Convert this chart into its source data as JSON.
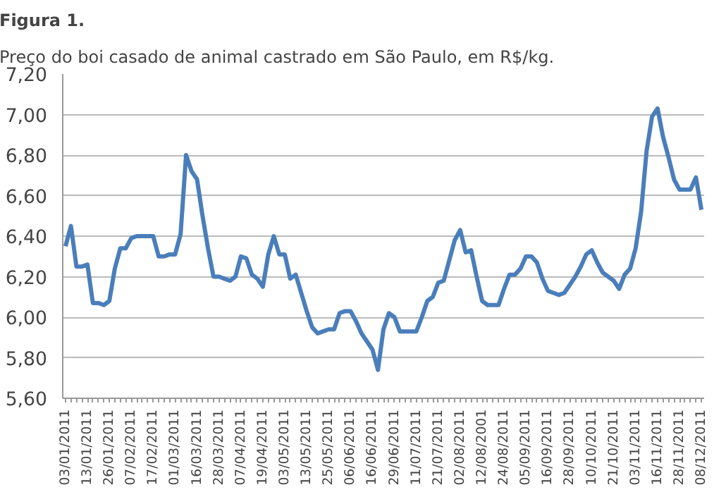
{
  "chart_data": {
    "type": "line",
    "title": "Figura 1.",
    "subtitle": "Preço do boi casado de animal castrado em São Paulo, em R$/kg.",
    "categories": [
      "03/01/2011",
      null,
      null,
      null,
      "13/01/2011",
      null,
      null,
      null,
      "26/01/2011",
      null,
      null,
      null,
      "07/02/2011",
      null,
      null,
      null,
      "17/02/2011",
      null,
      null,
      null,
      "01/03/2011",
      null,
      null,
      null,
      "16/03/2011",
      null,
      null,
      null,
      "28/03/2011",
      null,
      null,
      null,
      "07/04/2011",
      null,
      null,
      null,
      "19/04/2011",
      null,
      null,
      null,
      "03/05/2011",
      null,
      null,
      null,
      "13/05/2011",
      null,
      null,
      null,
      "25/05/2011",
      null,
      null,
      null,
      "06/06/2011",
      null,
      null,
      null,
      "16/06/2011",
      null,
      null,
      null,
      "29/06/2011",
      null,
      null,
      null,
      "11/07/2011",
      null,
      null,
      null,
      "21/07/2011",
      null,
      null,
      null,
      "02/08/2011",
      null,
      null,
      null,
      "12/08/2001",
      null,
      null,
      null,
      "24/08/2011",
      null,
      null,
      null,
      "05/09/2011",
      null,
      null,
      null,
      "16/09/2011",
      null,
      null,
      null,
      "28/09/2011",
      null,
      null,
      null,
      "10/10/2011",
      null,
      null,
      null,
      "21/10/2011",
      null,
      null,
      null,
      "03/11/2011",
      null,
      null,
      null,
      "16/11/2011",
      null,
      null,
      null,
      "28/11/2011",
      null,
      null,
      null,
      "08/12/2011"
    ],
    "series": [
      {
        "color": "#4a7ebb",
        "values": [
          6.35,
          6.45,
          6.25,
          6.25,
          6.26,
          6.07,
          6.07,
          6.06,
          6.08,
          6.24,
          6.34,
          6.34,
          6.39,
          6.4,
          6.4,
          6.4,
          6.4,
          6.3,
          6.3,
          6.31,
          6.31,
          6.41,
          6.8,
          6.72,
          6.68,
          6.5,
          6.34,
          6.2,
          6.2,
          6.19,
          6.18,
          6.2,
          6.3,
          6.29,
          6.21,
          6.19,
          6.15,
          6.31,
          6.4,
          6.31,
          6.31,
          6.19,
          6.21,
          6.12,
          6.03,
          5.95,
          5.92,
          5.93,
          5.94,
          5.94,
          6.02,
          6.03,
          6.03,
          5.98,
          5.92,
          5.88,
          5.84,
          5.74,
          5.94,
          6.02,
          6.0,
          5.93,
          5.93,
          5.93,
          5.93,
          6.0,
          6.08,
          6.1,
          6.17,
          6.18,
          6.28,
          6.38,
          6.43,
          6.32,
          6.33,
          6.2,
          6.08,
          6.06,
          6.06,
          6.06,
          6.14,
          6.21,
          6.21,
          6.24,
          6.3,
          6.3,
          6.27,
          6.19,
          6.13,
          6.12,
          6.11,
          6.12,
          6.16,
          6.2,
          6.25,
          6.31,
          6.33,
          6.27,
          6.22,
          6.2,
          6.18,
          6.14,
          6.21,
          6.24,
          6.34,
          6.52,
          6.82,
          6.99,
          7.03,
          6.89,
          6.79,
          6.68,
          6.63,
          6.63,
          6.63,
          6.69,
          6.53
        ]
      }
    ],
    "ylim": [
      5.6,
      7.2
    ],
    "yticks": [
      {
        "value": 5.6,
        "label": "5,60"
      },
      {
        "value": 5.8,
        "label": "5,80"
      },
      {
        "value": 6.0,
        "label": "6,00"
      },
      {
        "value": 6.2,
        "label": "6,20"
      },
      {
        "value": 6.4,
        "label": "6,40"
      },
      {
        "value": 6.6,
        "label": "6,60"
      },
      {
        "value": 6.8,
        "label": "6,80"
      },
      {
        "value": 7.0,
        "label": "7,00"
      },
      {
        "value": 7.2,
        "label": "7,20"
      }
    ],
    "grid": "y",
    "line_style": "solid"
  }
}
